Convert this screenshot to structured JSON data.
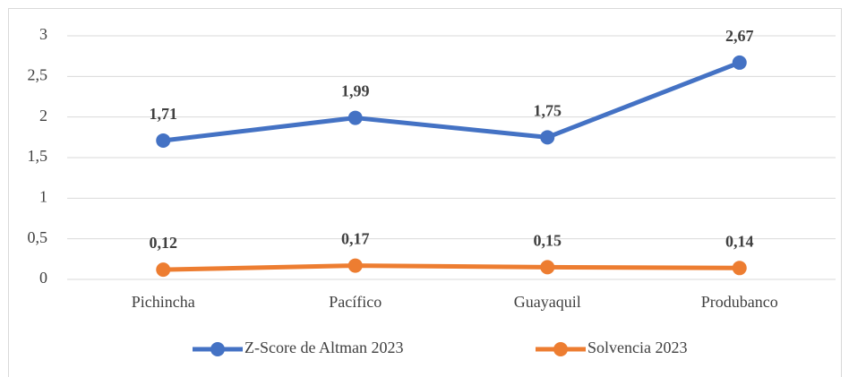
{
  "chart_data": {
    "type": "line",
    "categories": [
      "Pichincha",
      "Pacífico",
      "Guayaquil",
      "Produbanco"
    ],
    "series": [
      {
        "name": "Z-Score de Altman 2023",
        "color": "#4472c4",
        "values": [
          1.71,
          1.99,
          1.75,
          2.67
        ],
        "value_labels": [
          "1,71",
          "1,99",
          "1,75",
          "2,67"
        ]
      },
      {
        "name": "Solvencia 2023",
        "color": "#ed7d31",
        "values": [
          0.12,
          0.17,
          0.15,
          0.14
        ],
        "value_labels": [
          "0,12",
          "0,17",
          "0,15",
          "0,14"
        ]
      }
    ],
    "ylim": [
      0,
      3
    ],
    "yticks": [
      0,
      {
        "value": 0.5,
        "label": "0,5"
      },
      1,
      {
        "value": 1.5,
        "label": "1,5"
      },
      2,
      {
        "value": 2.5,
        "label": "2,5"
      },
      3
    ],
    "grid": true,
    "legend": "bottom"
  }
}
